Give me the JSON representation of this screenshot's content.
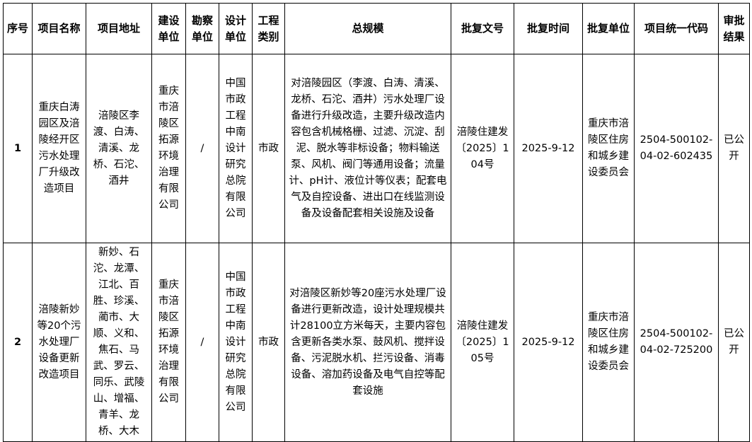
{
  "headers": [
    "序号",
    "项目名称",
    "项目地址",
    "建设单位",
    "勘察单位",
    "设计单位",
    "工程类别",
    "总规模",
    "批复文号",
    "批复时间",
    "批复单位",
    "项目统一代码",
    "审批结果"
  ],
  "rows": [
    {
      "index": "1",
      "name": "重庆白涛园区及涪陵经开区污水处理厂升级改造项目",
      "address": "涪陵区李渡、白涛、清溪、龙桥、石沱、酒井",
      "builder": "重庆市涪陵区拓源环境治理有限公司",
      "surveyor": "/",
      "designer": "中国市政工程中南设计研究总院有限公司",
      "category": "市政",
      "scale": "对涪陵园区（李渡、白涛、清溪、龙桥、石沱、酒井）污水处理厂设备进行升级改造，主要升级改造内容包含机械格栅、过滤、沉淀、刮泥、脱水等非标设备；物料输送泵、风机、阀门等通用设备；流量计、pH计、液位计等仪表；配套电气及自控设备、进出口在线监测设备及设备配套相关设施及设备",
      "approval_no": "涪陵住建发〔2025〕104号",
      "approval_date": "2025-9-12",
      "approval_unit": "重庆市涪陵区住房和城乡建设委员会",
      "code": "2504-500102-04-02-602435",
      "result": "已公开"
    },
    {
      "index": "2",
      "name": "涪陵新妙等20个污水处理厂设备更新改造项目",
      "address": "新妙、石沱、龙潭、江北、百胜、珍溪、蔺市、大顺、义和、焦石、马武、罗云、同乐、武陵山、增福、青羊、龙桥、大木",
      "builder": "重庆市涪陵区拓源环境治理有限公司",
      "surveyor": "/",
      "designer": "中国市政工程中南设计研究总院有限公司",
      "category": "市政",
      "scale": "对涪陵区新妙等20座污水处理厂设备进行更新改造，设计处理规模共计28100立方米每天，主要内容包含更新各类水泵、鼓风机、搅拌设备、污泥脱水机、拦污设备、消毒设备、溶加药设备及电气自控等配套设施",
      "approval_no": "涪陵住建发〔2025〕105号",
      "approval_date": "2025-9-12",
      "approval_unit": "重庆市涪陵区住房和城乡建设委员会",
      "code": "2504-500102-04-02-725200",
      "result": "已公开"
    }
  ]
}
